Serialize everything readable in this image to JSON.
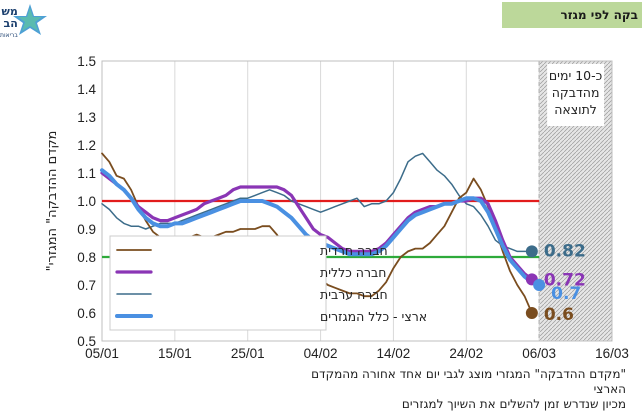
{
  "header": {
    "tag_text": "בקה לפי מגזר"
  },
  "logo": {
    "text_line1": "מש",
    "text_line2": "הב",
    "text_line3": "בריאות"
  },
  "footnote": {
    "line1": "\"מקדם ההדבקה\" המגזרי מוצג לגבי יום אחד אחורה מהמקדם הארצי",
    "line2": "מכיון שנדרש זמן להשלים את השיוך למגזרים"
  },
  "colors": {
    "haredi": "#7a4d1f",
    "general": "#8a35b5",
    "arab": "#3c6c8a",
    "national": "#4a90e2",
    "red_line": "#e21c1c",
    "green_line": "#2eaa3a",
    "grid": "#d9d9d9"
  },
  "chart_data": {
    "type": "line",
    "title": "",
    "ylabel": "\"מקדם ההדבקה\" המגזרי",
    "xlabel": "",
    "ylim": [
      0.5,
      1.5
    ],
    "yticks": [
      "0.5",
      "0.6",
      "0.7",
      "0.8",
      "0.9",
      "1.0",
      "1.1",
      "1.2",
      "1.3",
      "1.4",
      "1.5"
    ],
    "xticks": [
      "05/01",
      "15/01",
      "25/01",
      "04/02",
      "14/02",
      "24/02",
      "06/03",
      "16/03"
    ],
    "x_unit": "date (2021)",
    "grid": "vertical",
    "reference_lines": [
      {
        "y": 1.0,
        "color": "red"
      },
      {
        "y": 0.8,
        "color": "green"
      }
    ],
    "forecast_region": {
      "from": "06/03",
      "to": "16/03",
      "label": [
        "כ-10 ימים",
        "מהדבקה",
        "לתוצאה"
      ]
    },
    "legend_position": "left",
    "series": [
      {
        "name": "חברה חרדית",
        "color": "#7a4d1f",
        "x": [
          "05/01",
          "06/01",
          "07/01",
          "08/01",
          "09/01",
          "10/01",
          "11/01",
          "12/01",
          "13/01",
          "14/01",
          "15/01",
          "16/01",
          "17/01",
          "18/01",
          "19/01",
          "20/01",
          "21/01",
          "22/01",
          "23/01",
          "24/01",
          "25/01",
          "26/01",
          "27/01",
          "28/01",
          "29/01",
          "30/01",
          "31/01",
          "01/02",
          "02/02",
          "03/02",
          "04/02",
          "05/02",
          "06/02",
          "07/02",
          "08/02",
          "09/02",
          "10/02",
          "11/02",
          "12/02",
          "13/02",
          "14/02",
          "15/02",
          "16/02",
          "17/02",
          "18/02",
          "19/02",
          "20/02",
          "21/02",
          "22/02",
          "23/02",
          "24/02",
          "25/02",
          "26/02",
          "27/02",
          "28/02",
          "01/03",
          "02/03",
          "03/03",
          "04/03",
          "05/03"
        ],
        "y": [
          1.17,
          1.14,
          1.09,
          1.08,
          1.04,
          0.98,
          0.93,
          0.89,
          0.87,
          0.86,
          0.86,
          0.87,
          0.87,
          0.88,
          0.87,
          0.87,
          0.88,
          0.89,
          0.89,
          0.9,
          0.9,
          0.9,
          0.91,
          0.91,
          0.88,
          0.84,
          0.78,
          0.73,
          0.72,
          0.72,
          0.72,
          0.7,
          0.69,
          0.68,
          0.67,
          0.67,
          0.66,
          0.66,
          0.68,
          0.71,
          0.76,
          0.8,
          0.82,
          0.83,
          0.83,
          0.85,
          0.88,
          0.91,
          0.96,
          1.01,
          1.03,
          1.08,
          1.04,
          0.98,
          0.9,
          0.82,
          0.75,
          0.7,
          0.66,
          0.6
        ]
      },
      {
        "name": "חברה כללית",
        "color": "#8a35b5",
        "x": [
          "05/01",
          "06/01",
          "07/01",
          "08/01",
          "09/01",
          "10/01",
          "11/01",
          "12/01",
          "13/01",
          "14/01",
          "15/01",
          "16/01",
          "17/01",
          "18/01",
          "19/01",
          "20/01",
          "21/01",
          "22/01",
          "23/01",
          "24/01",
          "25/01",
          "26/01",
          "27/01",
          "28/01",
          "29/01",
          "30/01",
          "31/01",
          "01/02",
          "02/02",
          "03/02",
          "04/02",
          "05/02",
          "06/02",
          "07/02",
          "08/02",
          "09/02",
          "10/02",
          "11/02",
          "12/02",
          "13/02",
          "14/02",
          "15/02",
          "16/02",
          "17/02",
          "18/02",
          "19/02",
          "20/02",
          "21/02",
          "22/02",
          "23/02",
          "24/02",
          "25/02",
          "26/02",
          "27/02",
          "28/02",
          "01/03",
          "02/03",
          "03/03",
          "04/03",
          "05/03"
        ],
        "y": [
          1.1,
          1.08,
          1.06,
          1.04,
          1.01,
          0.98,
          0.96,
          0.94,
          0.93,
          0.93,
          0.94,
          0.95,
          0.96,
          0.97,
          0.99,
          1.0,
          1.01,
          1.02,
          1.04,
          1.05,
          1.05,
          1.05,
          1.05,
          1.05,
          1.05,
          1.04,
          1.02,
          0.98,
          0.94,
          0.9,
          0.88,
          0.87,
          0.85,
          0.83,
          0.82,
          0.82,
          0.82,
          0.82,
          0.83,
          0.85,
          0.88,
          0.91,
          0.94,
          0.96,
          0.97,
          0.98,
          0.98,
          0.99,
          0.99,
          1.0,
          1.0,
          1.01,
          1.01,
          0.99,
          0.93,
          0.86,
          0.8,
          0.77,
          0.74,
          0.72
        ]
      },
      {
        "name": "חברה ערבית",
        "color": "#3c6c8a",
        "x": [
          "05/01",
          "06/01",
          "07/01",
          "08/01",
          "09/01",
          "10/01",
          "11/01",
          "12/01",
          "13/01",
          "14/01",
          "15/01",
          "16/01",
          "17/01",
          "18/01",
          "19/01",
          "20/01",
          "21/01",
          "22/01",
          "23/01",
          "24/01",
          "25/01",
          "26/01",
          "27/01",
          "28/01",
          "29/01",
          "30/01",
          "31/01",
          "01/02",
          "02/02",
          "03/02",
          "04/02",
          "05/02",
          "06/02",
          "07/02",
          "08/02",
          "09/02",
          "10/02",
          "11/02",
          "12/02",
          "13/02",
          "14/02",
          "15/02",
          "16/02",
          "17/02",
          "18/02",
          "19/02",
          "20/02",
          "21/02",
          "22/02",
          "23/02",
          "24/02",
          "25/02",
          "26/02",
          "27/02",
          "28/02",
          "01/03",
          "02/03",
          "03/03",
          "04/03",
          "05/03"
        ],
        "y": [
          0.99,
          0.97,
          0.94,
          0.92,
          0.91,
          0.91,
          0.9,
          0.91,
          0.92,
          0.92,
          0.92,
          0.93,
          0.94,
          0.95,
          0.96,
          0.97,
          0.98,
          0.99,
          1.0,
          1.01,
          1.01,
          1.02,
          1.03,
          1.04,
          1.03,
          1.02,
          1.0,
          0.99,
          0.98,
          0.97,
          0.96,
          0.97,
          0.98,
          0.99,
          1.0,
          1.01,
          0.98,
          0.99,
          0.99,
          1.0,
          1.03,
          1.08,
          1.14,
          1.16,
          1.17,
          1.14,
          1.11,
          1.09,
          1.06,
          1.02,
          0.99,
          0.98,
          0.95,
          0.91,
          0.86,
          0.84,
          0.83,
          0.82,
          0.82,
          0.82
        ]
      },
      {
        "name": "ארצי - כלל המגזרים",
        "color": "#4a90e2",
        "x": [
          "05/01",
          "06/01",
          "07/01",
          "08/01",
          "09/01",
          "10/01",
          "11/01",
          "12/01",
          "13/01",
          "14/01",
          "15/01",
          "16/01",
          "17/01",
          "18/01",
          "19/01",
          "20/01",
          "21/01",
          "22/01",
          "23/01",
          "24/01",
          "25/01",
          "26/01",
          "27/01",
          "28/01",
          "29/01",
          "30/01",
          "31/01",
          "01/02",
          "02/02",
          "03/02",
          "04/02",
          "05/02",
          "06/02",
          "07/02",
          "08/02",
          "09/02",
          "10/02",
          "11/02",
          "12/02",
          "13/02",
          "14/02",
          "15/02",
          "16/02",
          "17/02",
          "18/02",
          "19/02",
          "20/02",
          "21/02",
          "22/02",
          "23/02",
          "24/02",
          "25/02",
          "26/02",
          "27/02",
          "28/02",
          "01/03",
          "02/03",
          "03/03",
          "04/03",
          "05/03",
          "06/03"
        ],
        "y": [
          1.11,
          1.09,
          1.06,
          1.04,
          1.01,
          0.97,
          0.94,
          0.92,
          0.91,
          0.91,
          0.92,
          0.92,
          0.93,
          0.94,
          0.95,
          0.96,
          0.97,
          0.98,
          0.99,
          1.0,
          1.0,
          1.0,
          1.0,
          0.99,
          0.98,
          0.96,
          0.94,
          0.91,
          0.88,
          0.86,
          0.85,
          0.84,
          0.83,
          0.82,
          0.81,
          0.81,
          0.81,
          0.81,
          0.82,
          0.84,
          0.87,
          0.9,
          0.93,
          0.95,
          0.96,
          0.97,
          0.98,
          0.99,
          0.99,
          1.0,
          1.01,
          1.01,
          1.0,
          0.96,
          0.9,
          0.84,
          0.79,
          0.76,
          0.73,
          0.71,
          0.7
        ]
      }
    ],
    "end_labels": [
      {
        "series": "חברה ערבית",
        "text": "0.82"
      },
      {
        "series": "חברה כללית",
        "text": "0.72"
      },
      {
        "series": "ארצי - כלל המגזרים",
        "text": "0.7"
      },
      {
        "series": "חברה חרדית",
        "text": "0.6"
      }
    ]
  }
}
